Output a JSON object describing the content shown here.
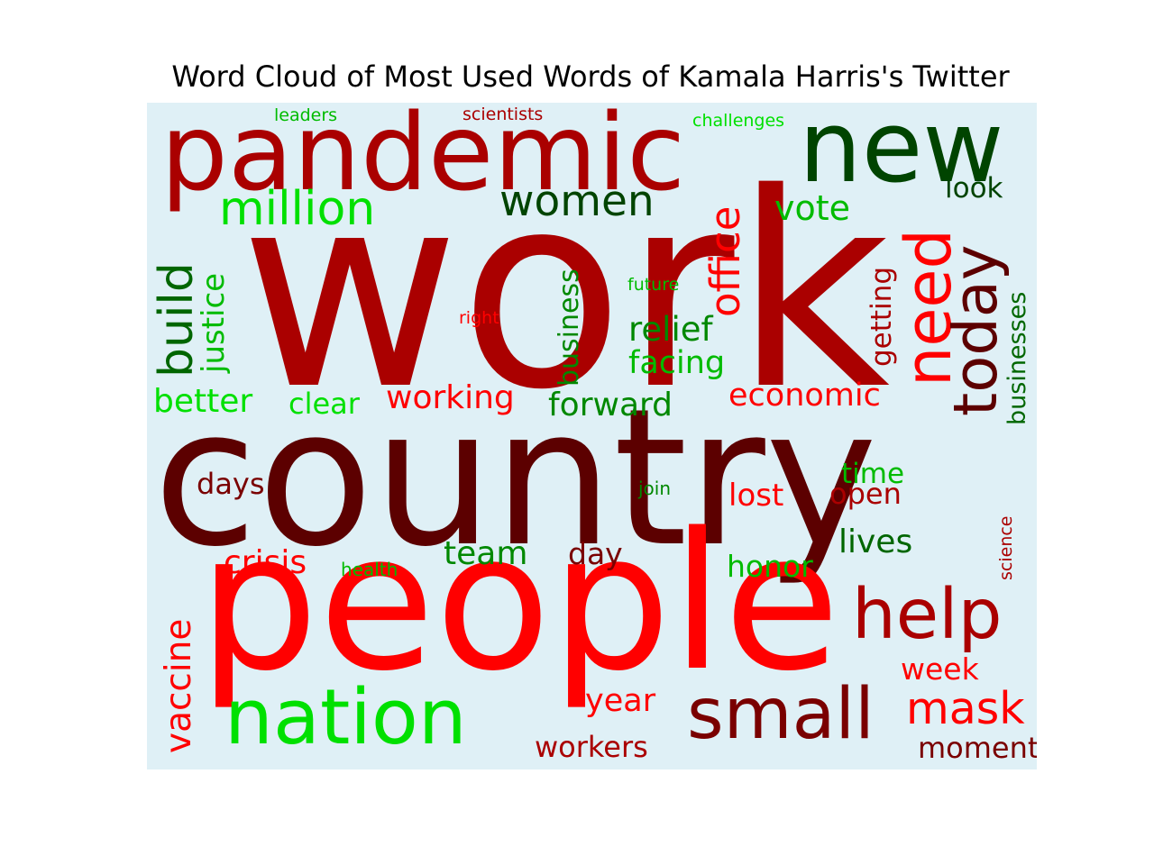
{
  "chart_data": {
    "type": "wordcloud",
    "title": "Word Cloud of Most Used Words of Kamala Harris's Twitter",
    "background": "#dff0f6",
    "colors": {
      "dark_red": "#5c0000",
      "red": "#aa0000",
      "bright_red": "#ff0000",
      "dark_green": "#004400",
      "green": "#008800",
      "bright_green": "#00e000"
    },
    "words": [
      {
        "text": "work",
        "color": "#aa0000"
      },
      {
        "text": "country",
        "color": "#5c0000"
      },
      {
        "text": "people",
        "color": "#ff0000"
      },
      {
        "text": "pandemic",
        "color": "#aa0000"
      },
      {
        "text": "new",
        "color": "#004400"
      },
      {
        "text": "nation",
        "color": "#00e000"
      },
      {
        "text": "small",
        "color": "#7a0000"
      },
      {
        "text": "help",
        "color": "#aa0000"
      },
      {
        "text": "need",
        "color": "#ff0000"
      },
      {
        "text": "today",
        "color": "#5c0000"
      },
      {
        "text": "office",
        "color": "#ff0000"
      },
      {
        "text": "million",
        "color": "#00e000"
      },
      {
        "text": "women",
        "color": "#004400"
      },
      {
        "text": "vaccine",
        "color": "#ff0000"
      },
      {
        "text": "build",
        "color": "#006600"
      },
      {
        "text": "mask",
        "color": "#ff0000"
      },
      {
        "text": "justice",
        "color": "#00bb00"
      },
      {
        "text": "vote",
        "color": "#00bb00"
      },
      {
        "text": "look",
        "color": "#004400"
      },
      {
        "text": "better",
        "color": "#00e000"
      },
      {
        "text": "working",
        "color": "#ff0000"
      },
      {
        "text": "forward",
        "color": "#008800"
      },
      {
        "text": "economic",
        "color": "#ff0000"
      },
      {
        "text": "relief",
        "color": "#008800"
      },
      {
        "text": "facing",
        "color": "#00bb00"
      },
      {
        "text": "business",
        "color": "#008800"
      },
      {
        "text": "businesses",
        "color": "#006600"
      },
      {
        "text": "getting",
        "color": "#aa0000"
      },
      {
        "text": "crisis",
        "color": "#ff0000"
      },
      {
        "text": "team",
        "color": "#008800"
      },
      {
        "text": "day",
        "color": "#7a0000"
      },
      {
        "text": "lives",
        "color": "#006600"
      },
      {
        "text": "honor",
        "color": "#00bb00"
      },
      {
        "text": "year",
        "color": "#ff0000"
      },
      {
        "text": "workers",
        "color": "#aa0000"
      },
      {
        "text": "week",
        "color": "#ff0000"
      },
      {
        "text": "moment",
        "color": "#7a0000"
      },
      {
        "text": "lost",
        "color": "#ff0000"
      },
      {
        "text": "open",
        "color": "#aa0000"
      },
      {
        "text": "time",
        "color": "#00bb00"
      },
      {
        "text": "days",
        "color": "#7a0000"
      },
      {
        "text": "clear",
        "color": "#00e000"
      },
      {
        "text": "health",
        "color": "#00bb00"
      },
      {
        "text": "join",
        "color": "#008800"
      },
      {
        "text": "science",
        "color": "#aa0000"
      },
      {
        "text": "right",
        "color": "#ff0000"
      },
      {
        "text": "future",
        "color": "#00bb00"
      },
      {
        "text": "leaders",
        "color": "#00bb00"
      },
      {
        "text": "scientists",
        "color": "#aa0000"
      },
      {
        "text": "challenges",
        "color": "#00e000"
      }
    ]
  }
}
